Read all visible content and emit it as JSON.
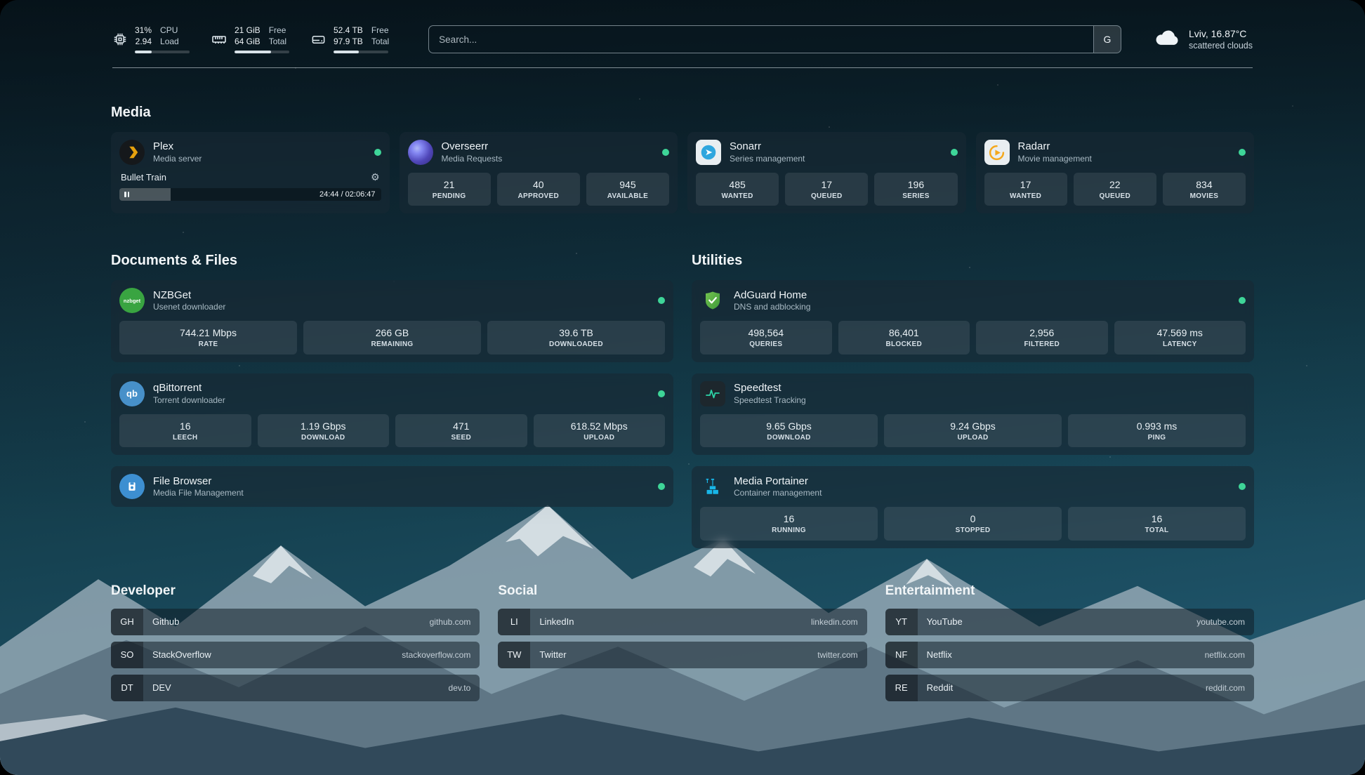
{
  "colors": {
    "online": "#3ed598"
  },
  "topbar": {
    "cpu": {
      "value": "31%",
      "load": "2.94",
      "label1": "CPU",
      "label2": "Load",
      "bar_percent": 31
    },
    "memory": {
      "free": "21 GiB",
      "total": "64 GiB",
      "label1": "Free",
      "label2": "Total",
      "bar_percent": 67
    },
    "disk": {
      "free": "52.4 TB",
      "total": "97.9 TB",
      "label1": "Free",
      "label2": "Total",
      "bar_percent": 46
    },
    "search": {
      "placeholder": "Search...",
      "button_label": "G"
    },
    "weather": {
      "location": "Lviv, 16.87°C",
      "condition": "scattered clouds"
    }
  },
  "media": {
    "title": "Media",
    "cards": [
      {
        "name": "Plex",
        "desc": "Media server",
        "now_playing": {
          "title": "Bullet Train",
          "time": "24:44 / 02:06:47",
          "progress_percent": 19.5
        }
      },
      {
        "name": "Overseerr",
        "desc": "Media Requests",
        "stats": [
          {
            "value": "21",
            "label": "PENDING"
          },
          {
            "value": "40",
            "label": "APPROVED"
          },
          {
            "value": "945",
            "label": "AVAILABLE"
          }
        ]
      },
      {
        "name": "Sonarr",
        "desc": "Series management",
        "stats": [
          {
            "value": "485",
            "label": "WANTED"
          },
          {
            "value": "17",
            "label": "QUEUED"
          },
          {
            "value": "196",
            "label": "SERIES"
          }
        ]
      },
      {
        "name": "Radarr",
        "desc": "Movie management",
        "stats": [
          {
            "value": "17",
            "label": "WANTED"
          },
          {
            "value": "22",
            "label": "QUEUED"
          },
          {
            "value": "834",
            "label": "MOVIES"
          }
        ]
      }
    ]
  },
  "documents": {
    "title": "Documents & Files",
    "cards": [
      {
        "name": "NZBGet",
        "desc": "Usenet downloader",
        "stats": [
          {
            "value": "744.21 Mbps",
            "label": "RATE"
          },
          {
            "value": "266 GB",
            "label": "REMAINING"
          },
          {
            "value": "39.6 TB",
            "label": "DOWNLOADED"
          }
        ]
      },
      {
        "name": "qBittorrent",
        "desc": "Torrent downloader",
        "stats": [
          {
            "value": "16",
            "label": "LEECH"
          },
          {
            "value": "1.19 Gbps",
            "label": "DOWNLOAD"
          },
          {
            "value": "471",
            "label": "SEED"
          },
          {
            "value": "618.52 Mbps",
            "label": "UPLOAD"
          }
        ]
      },
      {
        "name": "File Browser",
        "desc": "Media File Management",
        "stats": []
      }
    ]
  },
  "utilities": {
    "title": "Utilities",
    "cards": [
      {
        "name": "AdGuard Home",
        "desc": "DNS and adblocking",
        "stats": [
          {
            "value": "498,564",
            "label": "QUERIES"
          },
          {
            "value": "86,401",
            "label": "BLOCKED"
          },
          {
            "value": "2,956",
            "label": "FILTERED"
          },
          {
            "value": "47.569 ms",
            "label": "LATENCY"
          }
        ]
      },
      {
        "name": "Speedtest",
        "desc": "Speedtest Tracking",
        "stats": [
          {
            "value": "9.65 Gbps",
            "label": "DOWNLOAD"
          },
          {
            "value": "9.24 Gbps",
            "label": "UPLOAD"
          },
          {
            "value": "0.993 ms",
            "label": "PING"
          }
        ]
      },
      {
        "name": "Media Portainer",
        "desc": "Container management",
        "stats": [
          {
            "value": "16",
            "label": "RUNNING"
          },
          {
            "value": "0",
            "label": "STOPPED"
          },
          {
            "value": "16",
            "label": "TOTAL"
          }
        ]
      }
    ]
  },
  "bookmarks": [
    {
      "title": "Developer",
      "items": [
        {
          "abbr": "GH",
          "name": "Github",
          "url": "github.com"
        },
        {
          "abbr": "SO",
          "name": "StackOverflow",
          "url": "stackoverflow.com"
        },
        {
          "abbr": "DT",
          "name": "DEV",
          "url": "dev.to"
        }
      ]
    },
    {
      "title": "Social",
      "items": [
        {
          "abbr": "LI",
          "name": "LinkedIn",
          "url": "linkedin.com"
        },
        {
          "abbr": "TW",
          "name": "Twitter",
          "url": "twitter.com"
        }
      ]
    },
    {
      "title": "Entertainment",
      "items": [
        {
          "abbr": "YT",
          "name": "YouTube",
          "url": "youtube.com"
        },
        {
          "abbr": "NF",
          "name": "Netflix",
          "url": "netflix.com"
        },
        {
          "abbr": "RE",
          "name": "Reddit",
          "url": "reddit.com"
        }
      ]
    }
  ]
}
